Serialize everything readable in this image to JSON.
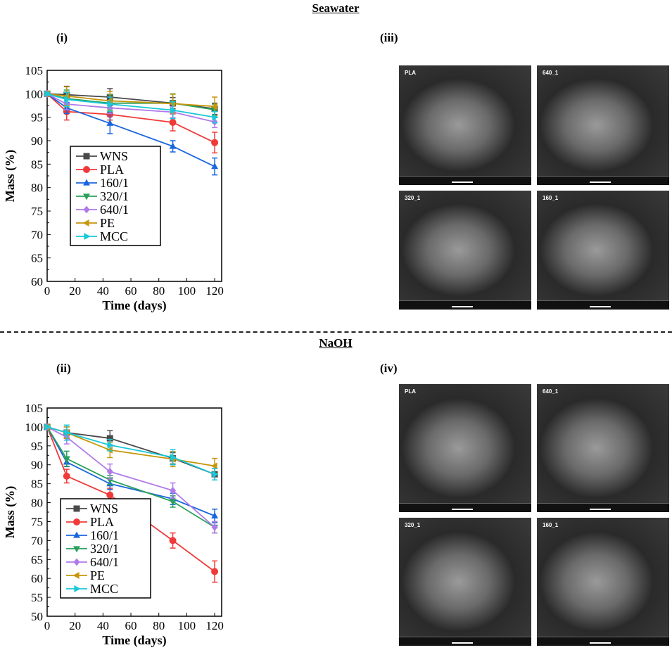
{
  "headings": {
    "top": "Seawater",
    "bottom": "NaOH"
  },
  "panel_labels": {
    "i": "(i)",
    "ii": "(ii)",
    "iii": "(iii)",
    "iv": "(iv)"
  },
  "sem_images": {
    "iii": [
      "PLA",
      "640_1",
      "320_1",
      "160_1"
    ],
    "iv": [
      "PLA",
      "640_1",
      "320_1",
      "160_1"
    ]
  },
  "chart_data": [
    {
      "type": "line",
      "title": "(i) Seawater",
      "xlabel": "Time (days)",
      "ylabel": "Mass (%)",
      "xlim": [
        0,
        125
      ],
      "ylim": [
        60,
        105
      ],
      "xticks": [
        0,
        20,
        40,
        60,
        80,
        100,
        120
      ],
      "yticks": [
        60,
        65,
        70,
        75,
        80,
        85,
        90,
        95,
        100,
        105
      ],
      "legend": "center-left",
      "x": [
        0,
        14,
        45,
        90,
        120
      ],
      "series": [
        {
          "name": "WNS",
          "color": "#4a4a4a",
          "marker": "square",
          "values": [
            100,
            99.8,
            99.3,
            98.0,
            96.8
          ],
          "err": [
            0.3,
            1.8,
            1.8,
            1.2,
            1.2
          ]
        },
        {
          "name": "PLA",
          "color": "#f03a3a",
          "marker": "circle",
          "values": [
            100,
            96.2,
            95.6,
            93.9,
            89.6
          ],
          "err": [
            0.3,
            1.8,
            1.2,
            1.8,
            2.2
          ]
        },
        {
          "name": "160/1",
          "color": "#1a66e0",
          "marker": "triangle-up",
          "values": [
            100,
            97.0,
            93.7,
            88.8,
            84.5
          ],
          "err": [
            0.3,
            1.2,
            2.2,
            1.2,
            1.8
          ]
        },
        {
          "name": "320/1",
          "color": "#2aa05a",
          "marker": "triangle-down",
          "values": [
            100,
            99.0,
            98.0,
            98.0,
            96.6
          ],
          "err": [
            0.3,
            1.8,
            1.8,
            2.0,
            1.2
          ]
        },
        {
          "name": "640/1",
          "color": "#b07ae8",
          "marker": "diamond",
          "values": [
            100,
            97.8,
            97.0,
            96.1,
            94.0
          ],
          "err": [
            0.3,
            1.2,
            1.2,
            1.2,
            1.2
          ]
        },
        {
          "name": "PE",
          "color": "#c8960a",
          "marker": "triangle-left",
          "values": [
            100,
            99.5,
            98.5,
            97.9,
            97.3
          ],
          "err": [
            0.3,
            2.0,
            2.0,
            2.0,
            2.0
          ]
        },
        {
          "name": "MCC",
          "color": "#1ac8d8",
          "marker": "triangle-right",
          "values": [
            100,
            98.8,
            97.8,
            96.5,
            95.0
          ],
          "err": [
            0.3,
            1.5,
            1.5,
            1.8,
            1.2
          ]
        }
      ]
    },
    {
      "type": "line",
      "title": "(ii) NaOH",
      "xlabel": "Time (days)",
      "ylabel": "Mass (%)",
      "xlim": [
        0,
        125
      ],
      "ylim": [
        50,
        105
      ],
      "xticks": [
        0,
        20,
        40,
        60,
        80,
        100,
        120
      ],
      "yticks": [
        50,
        55,
        60,
        65,
        70,
        75,
        80,
        85,
        90,
        95,
        100,
        105
      ],
      "legend": "bottom-left",
      "x": [
        0,
        14,
        45,
        90,
        120
      ],
      "series": [
        {
          "name": "WNS",
          "color": "#4a4a4a",
          "marker": "square",
          "values": [
            100,
            98.5,
            97.0,
            91.7,
            87.5
          ],
          "err": [
            0.3,
            1.5,
            2.0,
            1.5,
            1.5
          ]
        },
        {
          "name": "PLA",
          "color": "#f03a3a",
          "marker": "circle",
          "values": [
            100,
            87.0,
            82.0,
            70.0,
            61.8
          ],
          "err": [
            0.3,
            1.8,
            1.8,
            2.0,
            2.8
          ]
        },
        {
          "name": "160/1",
          "color": "#1a66e0",
          "marker": "triangle-up",
          "values": [
            100,
            90.7,
            85.0,
            81.0,
            76.5
          ],
          "err": [
            0.3,
            1.2,
            1.5,
            1.5,
            1.8
          ]
        },
        {
          "name": "320/1",
          "color": "#2aa05a",
          "marker": "triangle-down",
          "values": [
            100,
            91.6,
            86.0,
            80.3,
            73.5
          ],
          "err": [
            0.3,
            2.0,
            1.2,
            1.5,
            1.5
          ]
        },
        {
          "name": "640/1",
          "color": "#b07ae8",
          "marker": "diamond",
          "values": [
            100,
            97.3,
            88.2,
            83.2,
            73.5
          ],
          "err": [
            0.3,
            1.8,
            2.0,
            2.0,
            1.5
          ]
        },
        {
          "name": "PE",
          "color": "#c8960a",
          "marker": "triangle-left",
          "values": [
            100,
            98.5,
            93.9,
            91.5,
            89.7
          ],
          "err": [
            0.3,
            1.5,
            2.0,
            2.0,
            2.0
          ]
        },
        {
          "name": "MCC",
          "color": "#1ac8d8",
          "marker": "triangle-right",
          "values": [
            100,
            98.5,
            95.2,
            92.0,
            87.5
          ],
          "err": [
            0.3,
            2.0,
            1.5,
            2.0,
            1.5
          ]
        }
      ]
    }
  ]
}
